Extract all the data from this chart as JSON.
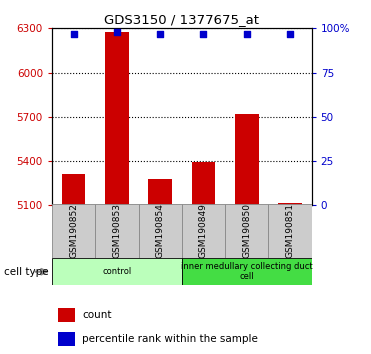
{
  "title": "GDS3150 / 1377675_at",
  "samples": [
    "GSM190852",
    "GSM190853",
    "GSM190854",
    "GSM190849",
    "GSM190850",
    "GSM190851"
  ],
  "counts": [
    5310,
    6275,
    5280,
    5395,
    5720,
    5115
  ],
  "percentiles": [
    97,
    98,
    97,
    97,
    97,
    97
  ],
  "ylim_left": [
    5100,
    6300
  ],
  "ylim_right": [
    0,
    100
  ],
  "yticks_left": [
    5100,
    5400,
    5700,
    6000,
    6300
  ],
  "yticks_right": [
    0,
    25,
    50,
    75,
    100
  ],
  "ytick_labels_left": [
    "5100",
    "5400",
    "5700",
    "6000",
    "6300"
  ],
  "ytick_labels_right": [
    "0",
    "25",
    "50",
    "75",
    "100%"
  ],
  "bar_color": "#cc0000",
  "dot_color": "#0000cc",
  "cell_types": [
    {
      "label": "control",
      "start": 0,
      "end": 3,
      "color": "#bbffbb"
    },
    {
      "label": "inner medullary collecting duct\ncell",
      "start": 3,
      "end": 6,
      "color": "#44dd44"
    }
  ],
  "cell_type_row_label": "cell type",
  "legend_count_label": "count",
  "legend_percentile_label": "percentile rank within the sample",
  "tick_box_color": "#cccccc",
  "dot_size": 18
}
